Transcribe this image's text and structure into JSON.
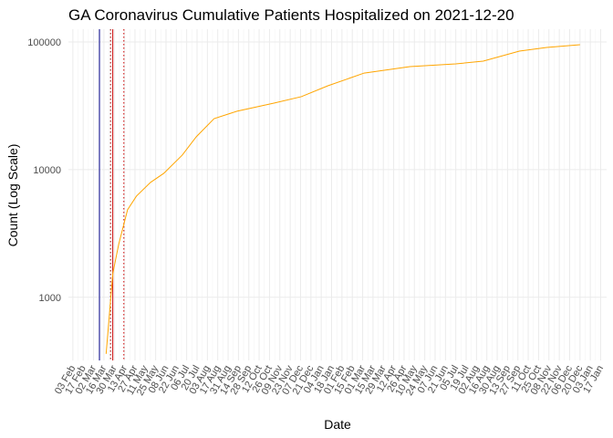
{
  "chart_data": {
    "type": "line",
    "title": "GA Coronavirus Cumulative Patients Hospitalized on 2021-12-20",
    "x_label": "Date",
    "y_label": "Count (Log Scale)",
    "log_y": true,
    "grid": true,
    "color": "#ffa500",
    "x": [
      "2020-03-19",
      "2020-03-28",
      "2020-04-05",
      "2020-04-17",
      "2020-04-29",
      "2020-05-18",
      "2020-06-05",
      "2020-06-30",
      "2020-07-19",
      "2020-08-12",
      "2020-09-12",
      "2020-11-01",
      "2020-12-08",
      "2021-01-13",
      "2021-03-03",
      "2021-05-04",
      "2021-07-05",
      "2021-08-11",
      "2021-09-29",
      "2021-11-05",
      "2021-12-20"
    ],
    "values": [
      360,
      1530,
      2600,
      4850,
      6200,
      7940,
      9360,
      13000,
      18100,
      25100,
      28700,
      33200,
      37300,
      45400,
      57100,
      64100,
      67400,
      70800,
      84800,
      90600,
      95200
    ],
    "xlim": [
      "2020-01-28",
      "2022-01-25"
    ],
    "ylim": [
      320,
      126000
    ],
    "yticks": [
      1000,
      10000,
      100000
    ],
    "vlines": [
      {
        "x": "2020-03-10",
        "color": "#00008b",
        "style": "solid"
      },
      {
        "x": "2020-03-25",
        "color": "#8b0000",
        "style": "dotted"
      },
      {
        "x": "2020-03-28",
        "color": "#cc0000",
        "style": "solid"
      },
      {
        "x": "2020-04-12",
        "color": "#cc0000",
        "style": "dotted"
      }
    ],
    "xticks": [
      {
        "value": "2020-02-03",
        "label": "03 Feb"
      },
      {
        "value": "2020-02-17",
        "label": "17 Feb"
      },
      {
        "value": "2020-03-02",
        "label": "02 Mar"
      },
      {
        "value": "2020-03-16",
        "label": "16 Mar"
      },
      {
        "value": "2020-03-30",
        "label": "30 Mar"
      },
      {
        "value": "2020-04-13",
        "label": "13 Apr"
      },
      {
        "value": "2020-04-27",
        "label": "27 Apr"
      },
      {
        "value": "2020-05-11",
        "label": "11 May"
      },
      {
        "value": "2020-05-25",
        "label": "25 May"
      },
      {
        "value": "2020-06-08",
        "label": "08 Jun"
      },
      {
        "value": "2020-06-22",
        "label": "22 Jun"
      },
      {
        "value": "2020-07-06",
        "label": "06 Jul"
      },
      {
        "value": "2020-07-20",
        "label": "20 Jul"
      },
      {
        "value": "2020-08-03",
        "label": "03 Aug"
      },
      {
        "value": "2020-08-17",
        "label": "17 Aug"
      },
      {
        "value": "2020-08-31",
        "label": "31 Aug"
      },
      {
        "value": "2020-09-14",
        "label": "14 Sep"
      },
      {
        "value": "2020-09-28",
        "label": "28 Sep"
      },
      {
        "value": "2020-10-12",
        "label": "12 Oct"
      },
      {
        "value": "2020-10-26",
        "label": "26 Oct"
      },
      {
        "value": "2020-11-09",
        "label": "09 Nov"
      },
      {
        "value": "2020-11-23",
        "label": "23 Nov"
      },
      {
        "value": "2020-12-07",
        "label": "07 Dec"
      },
      {
        "value": "2020-12-21",
        "label": "21 Dec"
      },
      {
        "value": "2021-01-04",
        "label": "04 Jan"
      },
      {
        "value": "2021-01-18",
        "label": "18 Jan"
      },
      {
        "value": "2021-02-01",
        "label": "01 Feb"
      },
      {
        "value": "2021-02-15",
        "label": "15 Feb"
      },
      {
        "value": "2021-03-01",
        "label": "01 Mar"
      },
      {
        "value": "2021-03-15",
        "label": "15 Mar"
      },
      {
        "value": "2021-03-29",
        "label": "29 Mar"
      },
      {
        "value": "2021-04-12",
        "label": "12 Apr"
      },
      {
        "value": "2021-04-26",
        "label": "26 Apr"
      },
      {
        "value": "2021-05-10",
        "label": "10 May"
      },
      {
        "value": "2021-05-24",
        "label": "24 May"
      },
      {
        "value": "2021-06-07",
        "label": "07 Jun"
      },
      {
        "value": "2021-06-21",
        "label": "21 Jun"
      },
      {
        "value": "2021-07-05",
        "label": "05 Jul"
      },
      {
        "value": "2021-07-19",
        "label": "19 Jul"
      },
      {
        "value": "2021-08-02",
        "label": "02 Aug"
      },
      {
        "value": "2021-08-16",
        "label": "16 Aug"
      },
      {
        "value": "2021-08-30",
        "label": "30 Aug"
      },
      {
        "value": "2021-09-13",
        "label": "13 Sep"
      },
      {
        "value": "2021-09-27",
        "label": "27 Sep"
      },
      {
        "value": "2021-10-11",
        "label": "11 Oct"
      },
      {
        "value": "2021-10-25",
        "label": "25 Oct"
      },
      {
        "value": "2021-11-08",
        "label": "08 Nov"
      },
      {
        "value": "2021-11-22",
        "label": "22 Nov"
      },
      {
        "value": "2021-12-06",
        "label": "06 Dec"
      },
      {
        "value": "2021-12-20",
        "label": "20 Dec"
      },
      {
        "value": "2022-01-03",
        "label": "03 Jan"
      },
      {
        "value": "2022-01-17",
        "label": "17 Jan"
      }
    ]
  }
}
